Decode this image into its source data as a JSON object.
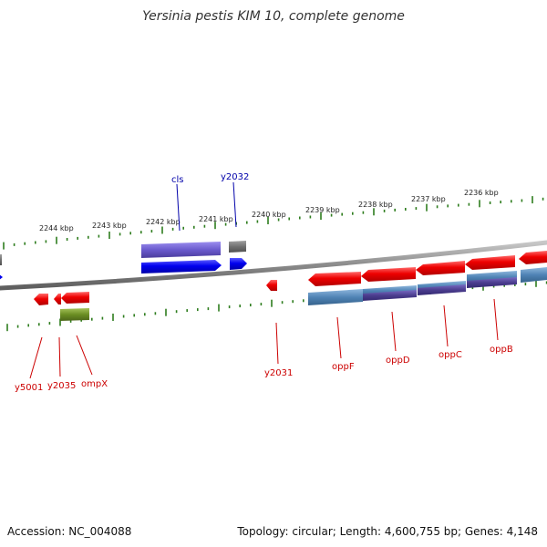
{
  "title": "Yersinia pestis KIM 10, complete genome",
  "footer": {
    "accession": "Accession: NC_004088",
    "stats": "Topology: circular; Length: 4,600,755 bp; Genes: 4,148"
  },
  "colors": {
    "tick": "#2e7d1e",
    "backbone": "#8a8a8a",
    "forward_gene": "#0000ee",
    "forward_label": "#0000aa",
    "reverse_gene": "#ee0000",
    "reverse_label": "#cc0000",
    "protein_purple": "#6a5acd",
    "protein_gray": "#707070",
    "protein_steel": "#4f83b5",
    "protein_olive": "#6b8e23"
  },
  "kbp_labels": [
    "2244 kbp",
    "2243 kbp",
    "2242 kbp",
    "2241 kbp",
    "2240 kbp",
    "2239 kbp",
    "2238 kbp",
    "2237 kbp",
    "2236 kbp"
  ],
  "forward_genes": [
    "cls",
    "y2032"
  ],
  "reverse_genes": [
    "y5001",
    "y2035",
    "ompX",
    "y2031",
    "oppF",
    "oppD",
    "oppC",
    "oppB"
  ]
}
